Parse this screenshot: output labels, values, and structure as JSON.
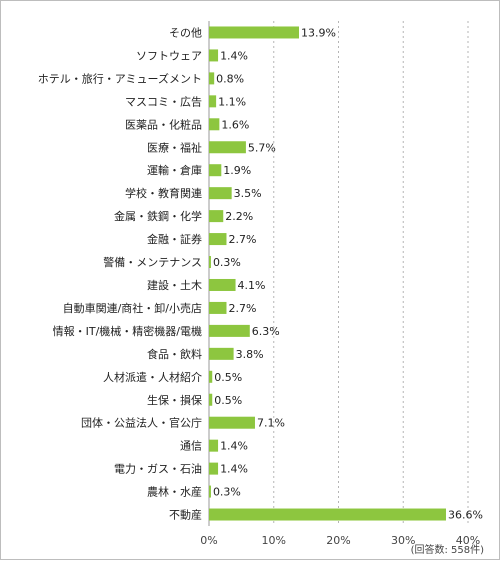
{
  "chart_data": {
    "type": "bar",
    "orientation": "horizontal",
    "categories": [
      "その他",
      "ソフトウェア",
      "ホテル・旅行・アミューズメント",
      "マスコミ・広告",
      "医薬品・化粧品",
      "医療・福祉",
      "運輸・倉庫",
      "学校・教育関連",
      "金属・鉄鋼・化学",
      "金融・証券",
      "警備・メンテナンス",
      "建設・土木",
      "自動車関連/商社・卸/小売店",
      "情報・IT/機械・精密機器/電機",
      "食品・飲料",
      "人材派遣・人材紹介",
      "生保・損保",
      "団体・公益法人・官公庁",
      "通信",
      "電力・ガス・石油",
      "農林・水産",
      "不動産"
    ],
    "values": [
      13.9,
      1.4,
      0.8,
      1.1,
      1.6,
      5.7,
      1.9,
      3.5,
      2.2,
      2.7,
      0.3,
      4.1,
      2.7,
      6.3,
      3.8,
      0.5,
      0.5,
      7.1,
      1.4,
      1.4,
      0.3,
      36.6
    ],
    "value_labels": [
      "13.9%",
      "1.4%",
      "0.8%",
      "1.1%",
      "1.6%",
      "5.7%",
      "1.9%",
      "3.5%",
      "2.2%",
      "2.7%",
      "0.3%",
      "4.1%",
      "2.7%",
      "6.3%",
      "3.8%",
      "0.5%",
      "0.5%",
      "7.1%",
      "1.4%",
      "1.4%",
      "0.3%",
      "36.6%"
    ],
    "xlim": [
      0,
      40
    ],
    "x_ticks": [
      0,
      10,
      20,
      30,
      40
    ],
    "x_tick_labels": [
      "0%",
      "10%",
      "20%",
      "30%",
      "40%"
    ],
    "grid": "vertical dotted",
    "note": "(回答数: 558件)",
    "title": "",
    "xlabel": "",
    "ylabel": ""
  },
  "colors": {
    "bar": "#8dc63f",
    "grid": "#b5b5b5",
    "axis": "#9a9a9a",
    "border": "#bdbdbd"
  }
}
